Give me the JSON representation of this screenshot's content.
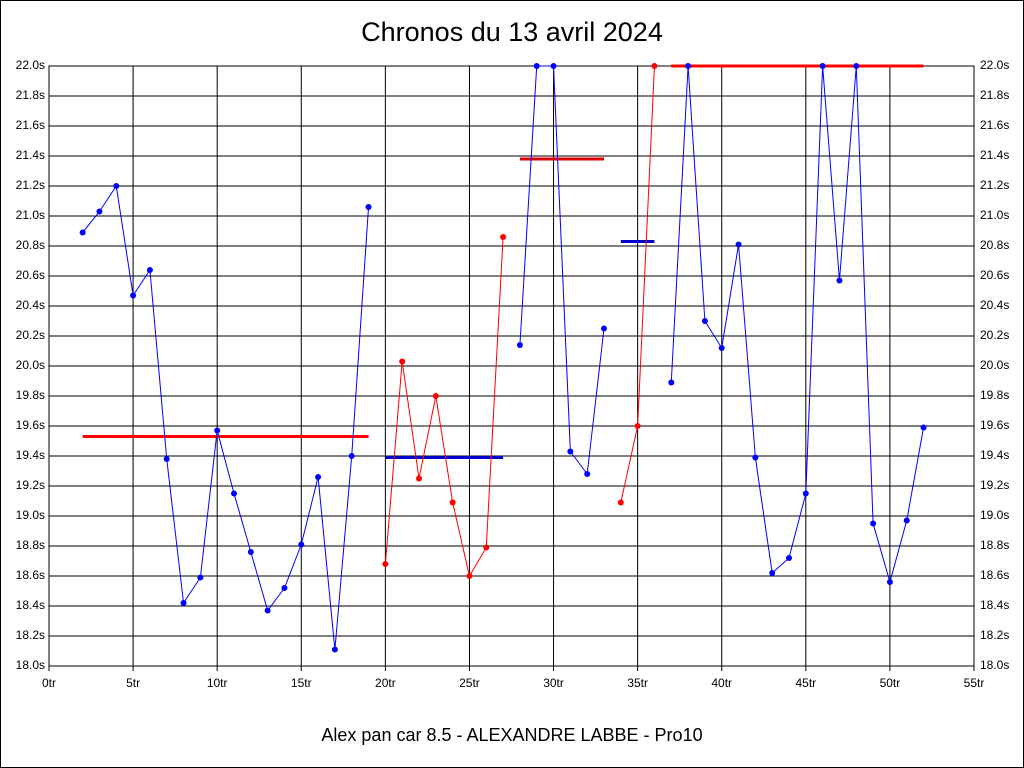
{
  "chart_data": {
    "type": "line",
    "title": "Chronos du 13 avril 2024",
    "xlabel": "Alex pan car 8.5 - ALEXANDRE LABBE - Pro10",
    "xlim": [
      0,
      55
    ],
    "xticks": [
      {
        "value": 0,
        "label": "0tr"
      },
      {
        "value": 5,
        "label": "5tr"
      },
      {
        "value": 10,
        "label": "10tr"
      },
      {
        "value": 15,
        "label": "15tr"
      },
      {
        "value": 20,
        "label": "20tr"
      },
      {
        "value": 25,
        "label": "25tr"
      },
      {
        "value": 30,
        "label": "30tr"
      },
      {
        "value": 35,
        "label": "35tr"
      },
      {
        "value": 40,
        "label": "40tr"
      },
      {
        "value": 45,
        "label": "45tr"
      },
      {
        "value": 50,
        "label": "50tr"
      },
      {
        "value": 55,
        "label": "55tr"
      }
    ],
    "ylim": [
      18,
      22
    ],
    "yticks": [
      {
        "value": 18.0,
        "label": "18.0s"
      },
      {
        "value": 18.2,
        "label": "18.2s"
      },
      {
        "value": 18.4,
        "label": "18.4s"
      },
      {
        "value": 18.6,
        "label": "18.6s"
      },
      {
        "value": 18.8,
        "label": "18.8s"
      },
      {
        "value": 19.0,
        "label": "19.0s"
      },
      {
        "value": 19.2,
        "label": "19.2s"
      },
      {
        "value": 19.4,
        "label": "19.4s"
      },
      {
        "value": 19.6,
        "label": "19.6s"
      },
      {
        "value": 19.8,
        "label": "19.8s"
      },
      {
        "value": 20.0,
        "label": "20.0s"
      },
      {
        "value": 20.2,
        "label": "20.2s"
      },
      {
        "value": 20.4,
        "label": "20.4s"
      },
      {
        "value": 20.6,
        "label": "20.6s"
      },
      {
        "value": 20.8,
        "label": "20.8s"
      },
      {
        "value": 21.0,
        "label": "21.0s"
      },
      {
        "value": 21.2,
        "label": "21.2s"
      },
      {
        "value": 21.4,
        "label": "21.4s"
      },
      {
        "value": 21.6,
        "label": "21.6s"
      },
      {
        "value": 21.8,
        "label": "21.8s"
      },
      {
        "value": 22.0,
        "label": "22.0s"
      }
    ],
    "grid": true,
    "series": [
      {
        "color": "#0000ff",
        "x": [
          2,
          3,
          4,
          5,
          6,
          7,
          8,
          9,
          10,
          11,
          12,
          13,
          14,
          15,
          16,
          17,
          18,
          19
        ],
        "values": [
          20.89,
          21.03,
          21.2,
          20.47,
          20.64,
          19.38,
          18.42,
          18.59,
          19.57,
          19.15,
          18.76,
          18.37,
          18.52,
          18.81,
          19.26,
          18.11,
          19.4,
          21.06
        ]
      },
      {
        "color": "#ff0000",
        "x": [
          20,
          21,
          22,
          23,
          24,
          25,
          26,
          27
        ],
        "values": [
          18.68,
          20.03,
          19.25,
          19.8,
          19.09,
          18.6,
          18.79,
          20.86
        ]
      },
      {
        "color": "#0000ff",
        "x": [
          28,
          29,
          30,
          31,
          32,
          33
        ],
        "values": [
          20.14,
          22.0,
          22.0,
          19.43,
          19.28,
          20.25
        ]
      },
      {
        "color": "#ff0000",
        "x": [
          34,
          35,
          36
        ],
        "values": [
          19.09,
          19.6,
          22.0
        ]
      },
      {
        "color": "#0000ff",
        "x": [
          37,
          38,
          39,
          40,
          41,
          42,
          43,
          44,
          45,
          46,
          47,
          48,
          49,
          50,
          51,
          52
        ],
        "values": [
          19.89,
          22.0,
          20.3,
          20.12,
          20.81,
          19.39,
          18.62,
          18.72,
          19.15,
          22.0,
          20.57,
          22.0,
          18.95,
          18.56,
          18.97,
          19.59
        ]
      }
    ],
    "averages": [
      {
        "x_start": 2,
        "x_end": 19,
        "value": 19.53,
        "color": "#ff0000"
      },
      {
        "x_start": 20,
        "x_end": 27,
        "value": 19.39,
        "color": "#0000cc"
      },
      {
        "x_start": 28,
        "x_end": 33,
        "value": 21.38,
        "color": "#dd0000"
      },
      {
        "x_start": 34,
        "x_end": 36,
        "value": 20.83,
        "color": "#0000cc"
      },
      {
        "x_start": 37,
        "x_end": 52,
        "value": 22.0,
        "color": "#ff0000"
      }
    ]
  }
}
